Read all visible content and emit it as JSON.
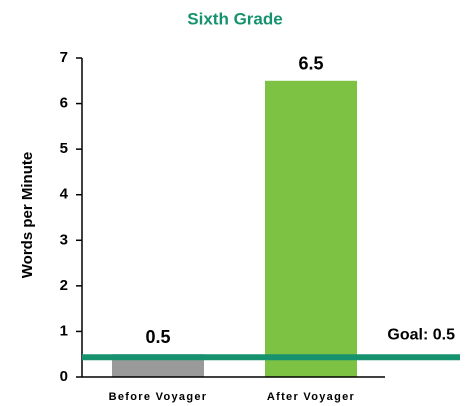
{
  "chart_data": {
    "type": "bar",
    "title": "Sixth Grade",
    "y_label": "Words per Minute",
    "categories": [
      "Before Voyager",
      "After Voyager"
    ],
    "values": [
      0.5,
      6.5
    ],
    "colors": [
      "#9a9a9a",
      "#7dc242"
    ],
    "ylim": [
      0,
      7
    ],
    "yticks": [
      0,
      1,
      2,
      3,
      4,
      5,
      6,
      7
    ],
    "grid": false,
    "goal": {
      "value": 0.5,
      "label": "Goal: 0.5",
      "color": "#17926e"
    }
  }
}
